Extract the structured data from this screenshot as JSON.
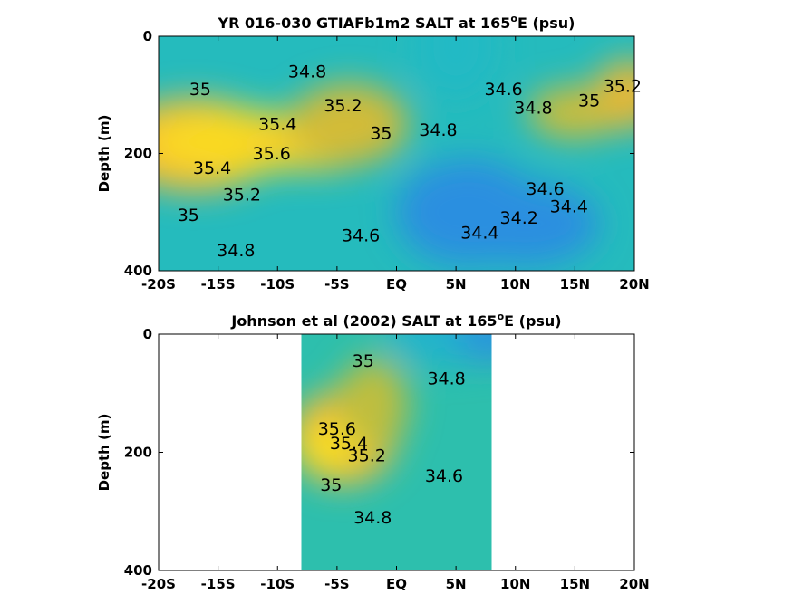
{
  "chart_data": [
    {
      "type": "contour",
      "title": "YR 016-030 GTIAFb1m2 SALT at 165",
      "title_deg": "o",
      "title_tail": "E (psu)",
      "ylabel": "Depth (m)",
      "xlim": [
        -20,
        20
      ],
      "ylim": [
        0,
        400
      ],
      "y_inverted": true,
      "x_ticks": [
        -20,
        -15,
        -10,
        -5,
        0,
        5,
        10,
        15,
        20
      ],
      "x_tick_labels": [
        "-20S",
        "-15S",
        "-10S",
        "-5S",
        "EQ",
        "5N",
        "10N",
        "15N",
        "20N"
      ],
      "y_ticks": [
        0,
        200,
        400
      ],
      "y_tick_labels": [
        "0",
        "200",
        "400"
      ],
      "data_extent_x": [
        -20,
        20
      ],
      "colormap": [
        "#2c8fe0",
        "#1fb9c8",
        "#37c39a",
        "#86c65f",
        "#c7bd3a",
        "#f7b537",
        "#f9e21e"
      ],
      "color_range": [
        34.1,
        35.8
      ],
      "blobs": [
        {
          "x": -2.5,
          "y": 395,
          "rx": 30,
          "ry": 200,
          "v": 34.45
        },
        {
          "x": -17,
          "y": 185,
          "rx": 7,
          "ry": 80,
          "v": 35.55
        },
        {
          "x": -13,
          "y": 180,
          "rx": 8,
          "ry": 55,
          "v": 35.75
        },
        {
          "x": -7,
          "y": 180,
          "rx": 6,
          "ry": 50,
          "v": 35.7
        },
        {
          "x": -4,
          "y": 150,
          "rx": 5,
          "ry": 70,
          "v": 35.3
        },
        {
          "x": 6,
          "y": 300,
          "rx": 6,
          "ry": 90,
          "v": 34.05
        },
        {
          "x": 11,
          "y": 320,
          "rx": 6,
          "ry": 70,
          "v": 34.05
        },
        {
          "x": 15,
          "y": 130,
          "rx": 4,
          "ry": 45,
          "v": 35.25
        },
        {
          "x": 19.5,
          "y": 100,
          "rx": 3,
          "ry": 60,
          "v": 35.4
        },
        {
          "x": 5,
          "y": 15,
          "rx": 3.5,
          "ry": 90,
          "v": 34.4
        }
      ],
      "contour_labels": [
        {
          "x": -7.5,
          "y": 70,
          "text": "34.8"
        },
        {
          "x": -16.5,
          "y": 100,
          "text": "35"
        },
        {
          "x": -4.5,
          "y": 128,
          "text": "35.2"
        },
        {
          "x": -10,
          "y": 160,
          "text": "35.4"
        },
        {
          "x": -10.5,
          "y": 210,
          "text": "35.6"
        },
        {
          "x": -15.5,
          "y": 235,
          "text": "35.4"
        },
        {
          "x": -13,
          "y": 280,
          "text": "35.2"
        },
        {
          "x": -17.5,
          "y": 315,
          "text": "35"
        },
        {
          "x": -13.5,
          "y": 375,
          "text": "34.8"
        },
        {
          "x": -1.3,
          "y": 175,
          "text": "35"
        },
        {
          "x": 3.5,
          "y": 170,
          "text": "34.8"
        },
        {
          "x": 9,
          "y": 100,
          "text": "34.6"
        },
        {
          "x": 11.5,
          "y": 132,
          "text": "34.8"
        },
        {
          "x": 16.2,
          "y": 120,
          "text": "35"
        },
        {
          "x": 19,
          "y": 95,
          "text": "35.2"
        },
        {
          "x": -3,
          "y": 350,
          "text": "34.6"
        },
        {
          "x": 12.5,
          "y": 270,
          "text": "34.6"
        },
        {
          "x": 14.5,
          "y": 300,
          "text": "34.4"
        },
        {
          "x": 10.3,
          "y": 320,
          "text": "34.2"
        },
        {
          "x": 7,
          "y": 345,
          "text": "34.4"
        }
      ]
    },
    {
      "type": "contour",
      "title": "Johnson et al (2002) SALT at 165",
      "title_deg": "o",
      "title_tail": "E (psu)",
      "ylabel": "Depth (m)",
      "xlim": [
        -20,
        20
      ],
      "ylim": [
        0,
        400
      ],
      "y_inverted": true,
      "x_ticks": [
        -20,
        -15,
        -10,
        -5,
        0,
        5,
        10,
        15,
        20
      ],
      "x_tick_labels": [
        "-20S",
        "-15S",
        "-10S",
        "-5S",
        "EQ",
        "5N",
        "10N",
        "15N",
        "20N"
      ],
      "y_ticks": [
        0,
        200,
        400
      ],
      "y_tick_labels": [
        "0",
        "200",
        "400"
      ],
      "data_extent_x": [
        -8,
        8
      ],
      "colormap": [
        "#2c8fe0",
        "#1fb9c8",
        "#37c39a",
        "#86c65f",
        "#c7bd3a",
        "#f7b537",
        "#f9e21e"
      ],
      "color_range": [
        34.1,
        35.8
      ],
      "blobs": [
        {
          "x": 0,
          "y": 400,
          "rx": 14,
          "ry": 300,
          "v": 34.55
        },
        {
          "x": -4.5,
          "y": 175,
          "rx": 4.5,
          "ry": 80,
          "v": 35.55
        },
        {
          "x": -5.5,
          "y": 190,
          "rx": 2.5,
          "ry": 35,
          "v": 35.85
        },
        {
          "x": -2,
          "y": 120,
          "rx": 3,
          "ry": 80,
          "v": 35.2
        },
        {
          "x": 4,
          "y": 0,
          "rx": 5,
          "ry": 55,
          "v": 34.35
        },
        {
          "x": 8,
          "y": 0,
          "rx": 3,
          "ry": 50,
          "v": 34.15
        }
      ],
      "contour_labels": [
        {
          "x": -2.8,
          "y": 55,
          "text": "35"
        },
        {
          "x": 4.2,
          "y": 85,
          "text": "34.8"
        },
        {
          "x": -5,
          "y": 170,
          "text": "35.6"
        },
        {
          "x": -4,
          "y": 195,
          "text": "35.4"
        },
        {
          "x": -2.5,
          "y": 215,
          "text": "35.2"
        },
        {
          "x": 4,
          "y": 250,
          "text": "34.6"
        },
        {
          "x": -5.5,
          "y": 265,
          "text": "35"
        },
        {
          "x": -2,
          "y": 320,
          "text": "34.8"
        }
      ]
    }
  ]
}
